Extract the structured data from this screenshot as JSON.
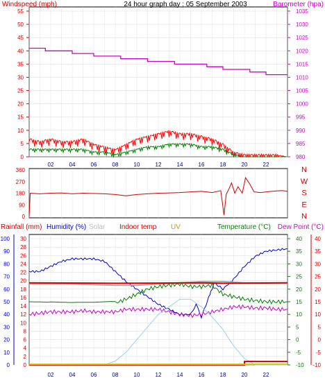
{
  "title": "24 hour graph day : 05 September 2003",
  "colors": {
    "wind": "#ff0000",
    "gust_fill": "#ff0000",
    "avg_wind": "#008000",
    "barometer": "#cc00cc",
    "direction": "#cc0000",
    "humidity": "#0000cc",
    "indoor_temp": "#cc0000",
    "temperature": "#008000",
    "dew_point": "#cc00cc",
    "solar": "#aaaaaa",
    "uv": "#cccc00",
    "rainfall": "#cc0000",
    "rain_axis": "#cc0000",
    "solar_curve": "#99ccff",
    "grid": "#d8d8d8",
    "frame": "#000000"
  },
  "chart_data": [
    {
      "id": "wind_pressure",
      "type": "line",
      "title": "24 hour graph day : 05 September 2003",
      "left_axis_label": "Windspeed (mph)",
      "right_axis_label": "Barometer (hpa)",
      "y_left": {
        "ylim": [
          0,
          55
        ],
        "ticks": [
          0,
          5,
          10,
          15,
          20,
          25,
          30,
          35,
          40,
          45,
          50,
          55
        ]
      },
      "y_right": {
        "ylim": [
          980,
          1035
        ],
        "ticks": [
          980,
          985,
          990,
          995,
          1000,
          1005,
          1010,
          1015,
          1020,
          1025,
          1030,
          1035
        ]
      },
      "x_ticks": [
        "02",
        "04",
        "06",
        "08",
        "10",
        "12",
        "14",
        "16",
        "18",
        "20",
        "22"
      ],
      "x_range_hours": [
        0,
        24
      ],
      "series": [
        {
          "key": "barometer",
          "axis": "right",
          "points": [
            [
              0,
              1021
            ],
            [
              1.5,
              1021
            ],
            [
              1.5,
              1020
            ],
            [
              4,
              1020
            ],
            [
              4,
              1019
            ],
            [
              6,
              1019
            ],
            [
              6,
              1018
            ],
            [
              8.5,
              1018
            ],
            [
              8.5,
              1017
            ],
            [
              11,
              1017
            ],
            [
              11,
              1016
            ],
            [
              13.5,
              1016
            ],
            [
              13.5,
              1015
            ],
            [
              16.5,
              1015
            ],
            [
              16.5,
              1014
            ],
            [
              18,
              1014
            ],
            [
              18,
              1013
            ],
            [
              20.5,
              1013
            ],
            [
              20.5,
              1012
            ],
            [
              22,
              1012
            ],
            [
              22,
              1011
            ],
            [
              24,
              1011
            ]
          ]
        },
        {
          "key": "wind_max",
          "axis": "left",
          "points": [
            [
              0,
              7
            ],
            [
              1,
              6
            ],
            [
              2,
              7
            ],
            [
              3,
              6
            ],
            [
              4,
              6
            ],
            [
              5,
              7
            ],
            [
              6,
              5
            ],
            [
              7,
              4
            ],
            [
              8,
              3
            ],
            [
              9,
              5
            ],
            [
              10,
              7
            ],
            [
              11,
              8
            ],
            [
              12,
              9
            ],
            [
              13,
              10
            ],
            [
              14,
              9
            ],
            [
              15,
              9
            ],
            [
              16,
              8
            ],
            [
              17,
              7
            ],
            [
              18,
              5
            ],
            [
              19,
              2
            ],
            [
              20,
              1
            ],
            [
              21,
              1
            ],
            [
              22,
              1
            ],
            [
              23,
              1
            ],
            [
              24,
              0
            ]
          ]
        },
        {
          "key": "wind_avg",
          "axis": "left",
          "points": [
            [
              0,
              3
            ],
            [
              1,
              3
            ],
            [
              2,
              3
            ],
            [
              3,
              3
            ],
            [
              4,
              3
            ],
            [
              5,
              3
            ],
            [
              6,
              2
            ],
            [
              7,
              2
            ],
            [
              8,
              1
            ],
            [
              9,
              2
            ],
            [
              10,
              3
            ],
            [
              11,
              4
            ],
            [
              12,
              4
            ],
            [
              13,
              5
            ],
            [
              14,
              5
            ],
            [
              15,
              5
            ],
            [
              16,
              4
            ],
            [
              17,
              4
            ],
            [
              18,
              3
            ],
            [
              19,
              1
            ],
            [
              20,
              0
            ],
            [
              21,
              0
            ],
            [
              22,
              0
            ],
            [
              23,
              0
            ],
            [
              24,
              0
            ]
          ]
        }
      ]
    },
    {
      "id": "wind_direction",
      "type": "line",
      "left_axis_ticks": [
        "360",
        "270",
        "180",
        "90",
        "0"
      ],
      "right_axis_letters": [
        "N",
        "W",
        "S",
        "E",
        "N"
      ],
      "ylim": [
        0,
        360
      ],
      "x_ticks": [
        "02",
        "04",
        "06",
        "08",
        "10",
        "12",
        "14",
        "16",
        "18",
        "20",
        "22"
      ],
      "series": [
        {
          "key": "direction",
          "points": [
            [
              0,
              0
            ],
            [
              0.1,
              180
            ],
            [
              1,
              175
            ],
            [
              2,
              180
            ],
            [
              3,
              182
            ],
            [
              4,
              175
            ],
            [
              5,
              180
            ],
            [
              6,
              178
            ],
            [
              7,
              175
            ],
            [
              8,
              170
            ],
            [
              9,
              160
            ],
            [
              10,
              170
            ],
            [
              11,
              175
            ],
            [
              12,
              180
            ],
            [
              13,
              182
            ],
            [
              14,
              185
            ],
            [
              15,
              190
            ],
            [
              16,
              195
            ],
            [
              17,
              185
            ],
            [
              17.8,
              200
            ],
            [
              18.1,
              10
            ],
            [
              18.3,
              170
            ],
            [
              18.6,
              220
            ],
            [
              18.8,
              260
            ],
            [
              19.1,
              180
            ],
            [
              19.4,
              230
            ],
            [
              19.8,
              180
            ],
            [
              20.1,
              300
            ],
            [
              20.5,
              250
            ],
            [
              20.9,
              190
            ],
            [
              21.5,
              185
            ],
            [
              22.5,
              195
            ],
            [
              23.5,
              200
            ],
            [
              24,
              195
            ]
          ]
        }
      ]
    },
    {
      "id": "temp_humidity",
      "type": "line",
      "header_labels": {
        "rainfall": "Rainfall (mm)",
        "humidity": "Humidity (%)",
        "solar": "Solar",
        "indoor_temp": "Indoor temp",
        "uv": "UV",
        "temperature": "Temperature (°C)",
        "dew_point": "Dew Point (°C)"
      },
      "humidity_axis": {
        "ylim": [
          0,
          100
        ],
        "ticks": [
          0,
          10,
          20,
          30,
          40,
          50,
          60,
          70,
          80,
          90,
          100
        ]
      },
      "rain_axis": {
        "ylim": [
          0,
          30
        ],
        "ticks": [
          0,
          2,
          4,
          6,
          8,
          10,
          12,
          14,
          16,
          18,
          20,
          22,
          24,
          26,
          28,
          30
        ]
      },
      "temp_axis": {
        "ylim": [
          -10,
          40
        ],
        "ticks": [
          -10,
          -5,
          0,
          5,
          10,
          15,
          20,
          25,
          30,
          35,
          40
        ]
      },
      "x_ticks": [
        "02",
        "04",
        "06",
        "08",
        "10",
        "12",
        "14",
        "16",
        "18",
        "20",
        "22"
      ],
      "series": [
        {
          "key": "humidity",
          "axis": "humidity",
          "points": [
            [
              0,
              74
            ],
            [
              1,
              74
            ],
            [
              2,
              78
            ],
            [
              3,
              82
            ],
            [
              4,
              84
            ],
            [
              5,
              84
            ],
            [
              6,
              84
            ],
            [
              7,
              82
            ],
            [
              8,
              74
            ],
            [
              9,
              66
            ],
            [
              10,
              60
            ],
            [
              11,
              54
            ],
            [
              12,
              48
            ],
            [
              13,
              44
            ],
            [
              14,
              40
            ],
            [
              15,
              40
            ],
            [
              15.5,
              48
            ],
            [
              16,
              38
            ],
            [
              16.8,
              56
            ],
            [
              17.2,
              65
            ],
            [
              18,
              60
            ],
            [
              19,
              68
            ],
            [
              20,
              78
            ],
            [
              21,
              86
            ],
            [
              22,
              90
            ],
            [
              23,
              91
            ],
            [
              24,
              92
            ]
          ]
        },
        {
          "key": "solar",
          "axis": "humidity",
          "points": [
            [
              0,
              64
            ],
            [
              4,
              64
            ],
            [
              8,
              63
            ],
            [
              10,
              63
            ],
            [
              12,
              64
            ],
            [
              14,
              65
            ],
            [
              16,
              66
            ],
            [
              18,
              66
            ],
            [
              20,
              65
            ],
            [
              22,
              65
            ],
            [
              24,
              65
            ]
          ]
        },
        {
          "key": "indoor_temp",
          "axis": "temp",
          "points": [
            [
              0,
              22.5
            ],
            [
              8,
              22.3
            ],
            [
              12,
              22.4
            ],
            [
              16,
              22.5
            ],
            [
              18,
              22.3
            ],
            [
              24,
              22.5
            ]
          ]
        },
        {
          "key": "temperature",
          "axis": "temp",
          "points": [
            [
              0,
              15
            ],
            [
              2,
              14.5
            ],
            [
              4,
              14
            ],
            [
              6,
              14
            ],
            [
              8,
              14.5
            ],
            [
              9,
              16
            ],
            [
              10,
              18
            ],
            [
              11,
              20
            ],
            [
              12,
              21
            ],
            [
              13,
              21.5
            ],
            [
              14,
              22
            ],
            [
              15,
              21
            ],
            [
              16,
              21
            ],
            [
              17,
              21.5
            ],
            [
              18,
              18
            ],
            [
              19,
              17
            ],
            [
              20,
              16
            ],
            [
              21,
              15.5
            ],
            [
              22,
              15
            ],
            [
              23,
              15
            ],
            [
              24,
              15
            ]
          ]
        },
        {
          "key": "dew_point",
          "axis": "temp",
          "points": [
            [
              0,
              10
            ],
            [
              1,
              10.5
            ],
            [
              2,
              11
            ],
            [
              3,
              11
            ],
            [
              4,
              11
            ],
            [
              5,
              11.5
            ],
            [
              6,
              11
            ],
            [
              7,
              11
            ],
            [
              8,
              11
            ],
            [
              9,
              12
            ],
            [
              10,
              12
            ],
            [
              11,
              12
            ],
            [
              12,
              12
            ],
            [
              13,
              11
            ],
            [
              14,
              10
            ],
            [
              15,
              9.5
            ],
            [
              16,
              10
            ],
            [
              17,
              11
            ],
            [
              18,
              12
            ],
            [
              19,
              13
            ],
            [
              20,
              13
            ],
            [
              21,
              12.5
            ],
            [
              22,
              12.5
            ],
            [
              23,
              12
            ],
            [
              24,
              12
            ]
          ]
        },
        {
          "key": "solar_curve",
          "axis": "humidity",
          "points": [
            [
              0,
              0
            ],
            [
              7,
              0
            ],
            [
              8,
              3
            ],
            [
              9,
              10
            ],
            [
              10,
              20
            ],
            [
              11,
              30
            ],
            [
              12,
              40
            ],
            [
              13,
              46
            ],
            [
              14,
              52
            ],
            [
              15,
              52
            ],
            [
              16,
              46
            ],
            [
              17,
              38
            ],
            [
              18,
              28
            ],
            [
              19,
              15
            ],
            [
              20,
              5
            ],
            [
              21,
              0
            ],
            [
              24,
              0
            ]
          ]
        },
        {
          "key": "rainfall",
          "axis": "rain",
          "points": [
            [
              0,
              0
            ],
            [
              20,
              0
            ],
            [
              20,
              0.8
            ],
            [
              24,
              0.8
            ]
          ]
        },
        {
          "key": "uv",
          "axis": "humidity",
          "points": [
            [
              0,
              0.5
            ],
            [
              24,
              0.5
            ]
          ]
        }
      ]
    }
  ]
}
